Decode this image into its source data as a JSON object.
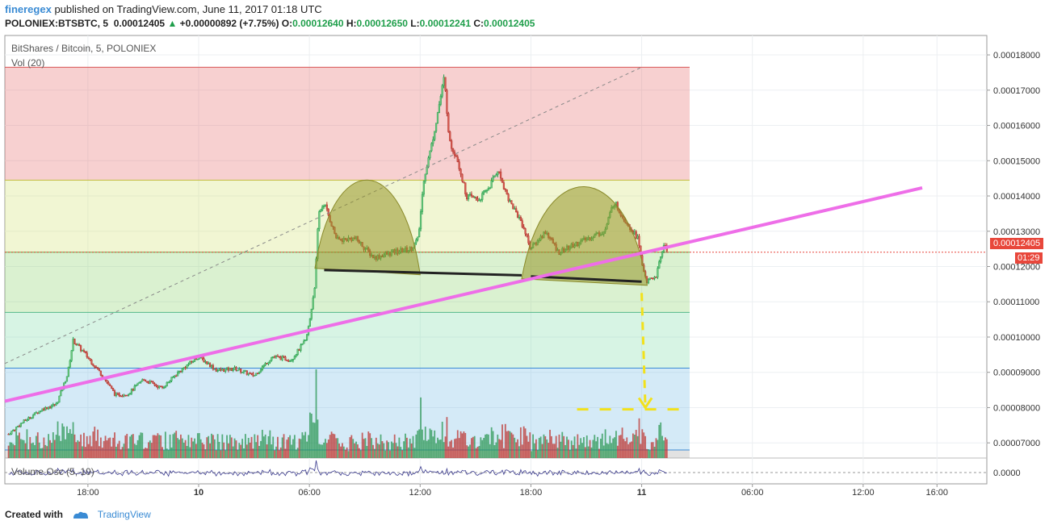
{
  "header": {
    "user": "fineregex",
    "published": "published on TradingView.com, June 11, 2017 01:18 UTC",
    "symbol": "POLONIEX:BTSBTC, 5",
    "last": "0.00012405",
    "change": "+0.00000892 (+7.75%)",
    "o_label": "O:",
    "o": "0.00012640",
    "h_label": "H:",
    "h": "0.00012650",
    "l_label": "L:",
    "l": "0.00012241",
    "c_label": "C:",
    "c": "0.00012405"
  },
  "legend": {
    "title": "BitShares / Bitcoin, 5, POLONIEX",
    "vol": "Vol (20)",
    "osc": "Volume Osc (5, 10)"
  },
  "badges": {
    "price": "0.00012405",
    "time": "01:29"
  },
  "footer": {
    "created": "Created with",
    "brand": "TradingView"
  },
  "colors": {
    "up": "#1e9e4a",
    "down": "#b0302b",
    "accent": "#ee6ee8",
    "brand": "#3a8bd4"
  },
  "chart_data": {
    "type": "candlestick",
    "y_ticks": [
      "0.00018000",
      "0.00017000",
      "0.00016000",
      "0.00015000",
      "0.00014000",
      "0.00013000",
      "0.00012000",
      "0.00011000",
      "0.00010000",
      "0.00009000",
      "0.00008000",
      "0.00007000"
    ],
    "y_tick_values": [
      0.00018,
      0.00017,
      0.00016,
      0.00015,
      0.00014,
      0.00013,
      0.00012,
      0.00011,
      0.0001,
      9e-05,
      8e-05,
      7e-05
    ],
    "ylim": [
      6.57e-05,
      0.0001855
    ],
    "x_ticks": [
      {
        "label": "18:00",
        "t": 18
      },
      {
        "label": "10",
        "t": 24
      },
      {
        "label": "06:00",
        "t": 30
      },
      {
        "label": "12:00",
        "t": 36
      },
      {
        "label": "18:00",
        "t": 42
      },
      {
        "label": "11",
        "t": 48
      },
      {
        "label": "06:00",
        "t": 54
      },
      {
        "label": "12:00",
        "t": 60
      },
      {
        "label": "16:00",
        "t": 64
      }
    ],
    "xlim": [
      13.5,
      66.7
    ],
    "osc_tick": "0.0000",
    "price_path": [
      [
        13.7,
        7.25e-05
      ],
      [
        14.5,
        7.6e-05
      ],
      [
        15.5,
        7.95e-05
      ],
      [
        16.3,
        8.1e-05
      ],
      [
        16.9,
        8.95e-05
      ],
      [
        17.2,
        9.9e-05
      ],
      [
        17.8,
        9.55e-05
      ],
      [
        18.8,
        8.9e-05
      ],
      [
        19.5,
        8.35e-05
      ],
      [
        20.2,
        8.4e-05
      ],
      [
        21.0,
        8.8e-05
      ],
      [
        22.0,
        8.55e-05
      ],
      [
        23.0,
        9.05e-05
      ],
      [
        24.0,
        9.45e-05
      ],
      [
        25.0,
        9.05e-05
      ],
      [
        26.0,
        9.1e-05
      ],
      [
        27.0,
        8.9e-05
      ],
      [
        28.0,
        9.45e-05
      ],
      [
        29.0,
        9.35e-05
      ],
      [
        29.8,
        9.9e-05
      ],
      [
        30.0,
        0.000104
      ],
      [
        30.3,
        0.000115
      ],
      [
        30.5,
        0.000135
      ],
      [
        30.8,
        0.000138
      ],
      [
        31.5,
        0.0001275
      ],
      [
        32.5,
        0.000128
      ],
      [
        33.5,
        0.0001225
      ],
      [
        34.5,
        0.000124
      ],
      [
        35.5,
        0.000125
      ],
      [
        35.9,
        0.000128
      ],
      [
        36.2,
        0.000145
      ],
      [
        36.6,
        0.000154
      ],
      [
        37.0,
        0.000165
      ],
      [
        37.3,
        0.0001735
      ],
      [
        37.6,
        0.000155
      ],
      [
        38.0,
        0.000151
      ],
      [
        38.5,
        0.00014
      ],
      [
        39.2,
        0.000139
      ],
      [
        39.8,
        0.000143
      ],
      [
        40.2,
        0.0001475
      ],
      [
        40.8,
        0.000139
      ],
      [
        41.5,
        0.0001325
      ],
      [
        42.0,
        0.000125
      ],
      [
        42.8,
        0.00013
      ],
      [
        43.5,
        0.000124
      ],
      [
        44.3,
        0.000126
      ],
      [
        45.3,
        0.0001285
      ],
      [
        46.0,
        0.00013
      ],
      [
        46.5,
        0.0001385
      ],
      [
        47.0,
        0.000134
      ],
      [
        47.8,
        0.000128
      ],
      [
        48.0,
        0.000121
      ],
      [
        48.3,
        0.0001155
      ],
      [
        48.8,
        0.0001175
      ],
      [
        49.2,
        0.0001265
      ],
      [
        49.4,
        0.00012405
      ]
    ],
    "volume_series": [
      6.795e-05,
      6.795e-05
    ],
    "annotations": {
      "fib_top": 0.0001765,
      "fib_levels": [
        0.0001445,
        0.00012405,
        0.000107,
        9.12e-05,
        6.8e-05
      ],
      "trendline": [
        [
          13.5,
          8.18e-05
        ],
        [
          63.2,
          0.0001423
        ]
      ],
      "dashed_diag": [
        [
          13.5,
          9.25e-05
        ],
        [
          48.0,
          0.0001765
        ]
      ],
      "neckline_left": [
        [
          30.8,
          0.000119
        ],
        [
          41.5,
          0.0001175
        ]
      ],
      "neckline_right": [
        [
          42.0,
          0.0001172
        ],
        [
          48.0,
          0.0001157
        ]
      ],
      "target_arrow": [
        [
          48.0,
          0.0001125
        ],
        [
          48.2,
          8e-05
        ]
      ],
      "target_line": [
        [
          44.5,
          7.95e-05
        ],
        [
          50.3,
          7.95e-05
        ]
      ]
    }
  }
}
